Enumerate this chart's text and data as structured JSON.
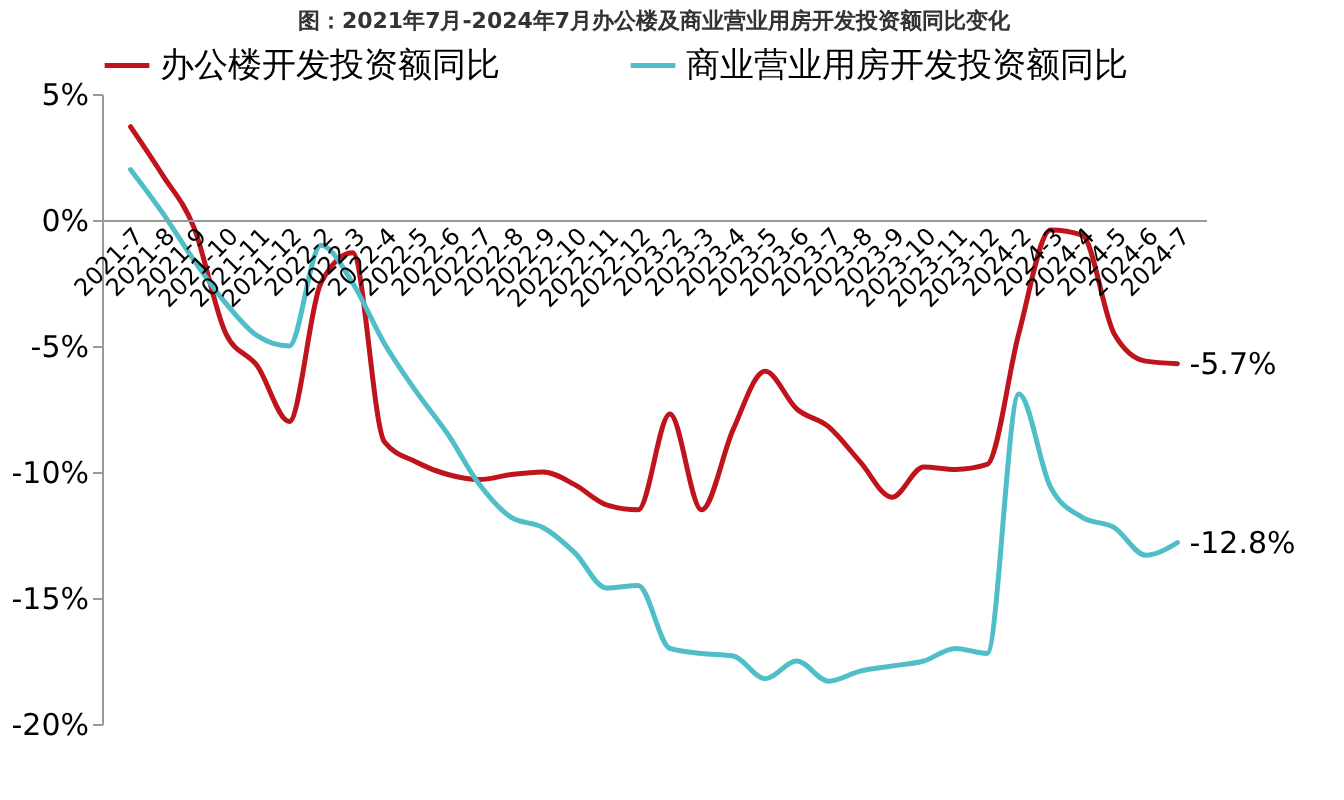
{
  "chart_data": {
    "type": "line",
    "title": "图：2021年7月-2024年7月办公楼及商业营业用房开发投资额同比变化",
    "categories": [
      "2021-7",
      "2021-8",
      "2021-9",
      "2021-10",
      "2021-11",
      "2021-12",
      "2022-2",
      "2022-3",
      "2022-4",
      "2022-5",
      "2022-6",
      "2022-7",
      "2022-8",
      "2022-9",
      "2022-10",
      "2022-11",
      "2022-12",
      "2023-2",
      "2023-3",
      "2023-4",
      "2023-5",
      "2023-6",
      "2023-7",
      "2023-8",
      "2023-9",
      "2023-10",
      "2023-11",
      "2023-12",
      "2024-2",
      "2024-3",
      "2024-4",
      "2024-5",
      "2024-6",
      "2024-7"
    ],
    "series": [
      {
        "name": "办公楼开发投资额同比",
        "color": "#c0141c",
        "values": [
          3.7,
          1.8,
          -0.3,
          -4.5,
          -5.8,
          -8.0,
          -2.5,
          -1.3,
          -8.8,
          -9.6,
          -10.1,
          -10.3,
          -10.1,
          -10.0,
          -10.5,
          -11.3,
          -11.5,
          -7.7,
          -11.5,
          -8.3,
          -6.0,
          -7.5,
          -8.2,
          -9.6,
          -11.0,
          -9.8,
          -9.9,
          -9.7,
          -4.5,
          -0.4,
          -0.6,
          -4.5,
          -5.6,
          -5.7
        ]
      },
      {
        "name": "商业营业用房开发投资额同比",
        "color": "#4fbec8",
        "values": [
          2.0,
          0.3,
          -1.6,
          -3.3,
          -4.6,
          -5.0,
          -1.0,
          -2.5,
          -4.9,
          -6.8,
          -8.5,
          -10.5,
          -11.8,
          -12.2,
          -13.2,
          -14.6,
          -14.5,
          -17.0,
          -17.2,
          -17.3,
          -18.2,
          -17.5,
          -18.3,
          -17.9,
          -17.7,
          -17.5,
          -17.0,
          -17.2,
          -6.9,
          -10.6,
          -11.8,
          -12.2,
          -13.3,
          -12.8
        ]
      }
    ],
    "ylim": [
      -20,
      5
    ],
    "yticks": [
      {
        "value": -20,
        "label": "-20%"
      },
      {
        "value": -15,
        "label": "-15%"
      },
      {
        "value": -10,
        "label": "-10%"
      },
      {
        "value": -5,
        "label": "-5%"
      },
      {
        "value": 0,
        "label": "0%"
      },
      {
        "value": 5,
        "label": "5%"
      }
    ],
    "annotations": [
      {
        "text": "-5.7%",
        "x": "2024-7",
        "y": -5.7
      },
      {
        "text": "-12.8%",
        "x": "2024-7",
        "y": -12.8
      }
    ],
    "grid": false,
    "legend": "top",
    "marker": "none",
    "line_style": "solid"
  }
}
